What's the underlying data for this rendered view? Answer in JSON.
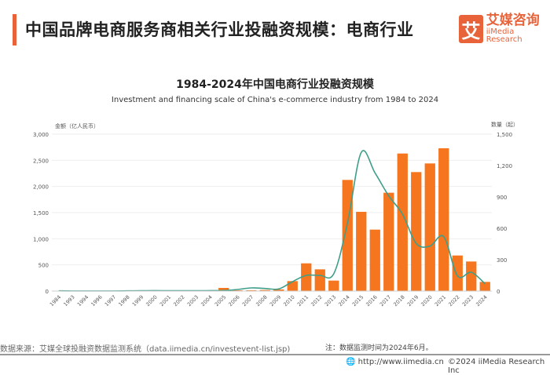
{
  "header": {
    "title": "中国品牌电商服务商相关行业投融资规模：电商行业",
    "logo_cn": "艾媒咨询",
    "logo_en": "iiMedia Research",
    "logo_mark": "艾"
  },
  "colors": {
    "accent": "#e8633a",
    "bar": "#f5761e",
    "line": "#3f9e8a"
  },
  "chart_data": {
    "type": "bar+line",
    "title": "1984-2024年中国电商行业投融资规模",
    "subtitle": "Investment and financing scale of China's e-commerce industry from 1984 to 2024",
    "ylabel_left": "金额（亿人民币）",
    "ylabel_right": "数量（起）",
    "ylim_left": [
      0,
      3000
    ],
    "ylim_right": [
      0,
      1500
    ],
    "yticks_left": [
      "0",
      "500",
      "1,000",
      "1,500",
      "2,000",
      "2,500",
      "3,000"
    ],
    "yticks_right": [
      "0",
      "300",
      "600",
      "900",
      "1,200",
      "1,500"
    ],
    "grid": true,
    "categories": [
      "1984",
      "1993",
      "1994",
      "1996",
      "1997",
      "1998",
      "1999",
      "2000",
      "2001",
      "2002",
      "2003",
      "2004",
      "2005",
      "2006",
      "2007",
      "2008",
      "2009",
      "2010",
      "2011",
      "2012",
      "2013",
      "2014",
      "2015",
      "2016",
      "2017",
      "2018",
      "2019",
      "2020",
      "2021",
      "2022",
      "2023",
      "2024"
    ],
    "series": [
      {
        "type": "bar",
        "axis": "left",
        "values": [
          5,
          2,
          2,
          2,
          2,
          3,
          4,
          5,
          3,
          3,
          3,
          5,
          60,
          15,
          15,
          20,
          30,
          190,
          530,
          415,
          200,
          2125,
          1515,
          1175,
          1880,
          2630,
          2275,
          2440,
          2730,
          680,
          565,
          175
        ]
      },
      {
        "type": "line",
        "axis": "right",
        "values": [
          2,
          1,
          1,
          1,
          1,
          2,
          3,
          4,
          3,
          3,
          3,
          4,
          5,
          15,
          30,
          25,
          20,
          90,
          150,
          150,
          165,
          650,
          1325,
          1130,
          910,
          735,
          455,
          430,
          520,
          145,
          180,
          70
        ]
      }
    ]
  },
  "footer": {
    "source": "数据来源：艾媒全球投融资数据监测系统（data.iimedia.cn/investevent-list.jsp)",
    "note": "注：数据监测时间为2024年6月。",
    "url": "http://www.iimedia.cn",
    "copyright": "©2024  iiMedia Research  Inc"
  }
}
